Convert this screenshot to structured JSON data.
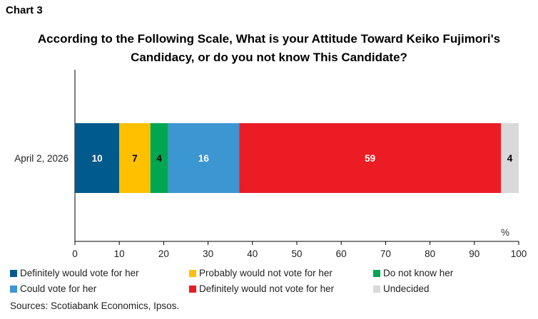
{
  "header": {
    "chart_label": "Chart 3",
    "title_line1": "According to the Following Scale, What is your Attitude Toward Keiko Fujimori's",
    "title_line2": "Candidacy, or do you not know This Candidate?"
  },
  "source": "Sources: Scotiabank Economics, Ipsos.",
  "colors": {
    "definitely_vote": "#005a8c",
    "probably_not": "#ffc000",
    "do_not_know": "#00a651",
    "could_vote": "#3c96d2",
    "definitely_not": "#ec1c24",
    "undecided": "#d9d9d9"
  },
  "chart_data": {
    "type": "bar",
    "orientation": "horizontal",
    "stacked": true,
    "categories": [
      "April 2, 2026"
    ],
    "series": [
      {
        "name": "Definitely would vote for her",
        "values": [
          10
        ],
        "color": "#005a8c",
        "label_color": "#ffffff"
      },
      {
        "name": "Probably would not vote for her",
        "values": [
          7
        ],
        "color": "#ffc000",
        "label_color": "#000000"
      },
      {
        "name": "Do not know her",
        "values": [
          4
        ],
        "color": "#00a651",
        "label_color": "#000000"
      },
      {
        "name": "Could vote for her",
        "values": [
          16
        ],
        "color": "#3c96d2",
        "label_color": "#ffffff"
      },
      {
        "name": "Definitely would not vote for her",
        "values": [
          59
        ],
        "color": "#ec1c24",
        "label_color": "#ffffff"
      },
      {
        "name": "Undecided",
        "values": [
          4
        ],
        "color": "#d9d9d9",
        "label_color": "#000000"
      }
    ],
    "xlim": [
      0,
      100
    ],
    "xticks": [
      0,
      10,
      20,
      30,
      40,
      50,
      60,
      70,
      80,
      90,
      100
    ],
    "unit_label": "%",
    "grid": false,
    "legend_position": "bottom"
  }
}
